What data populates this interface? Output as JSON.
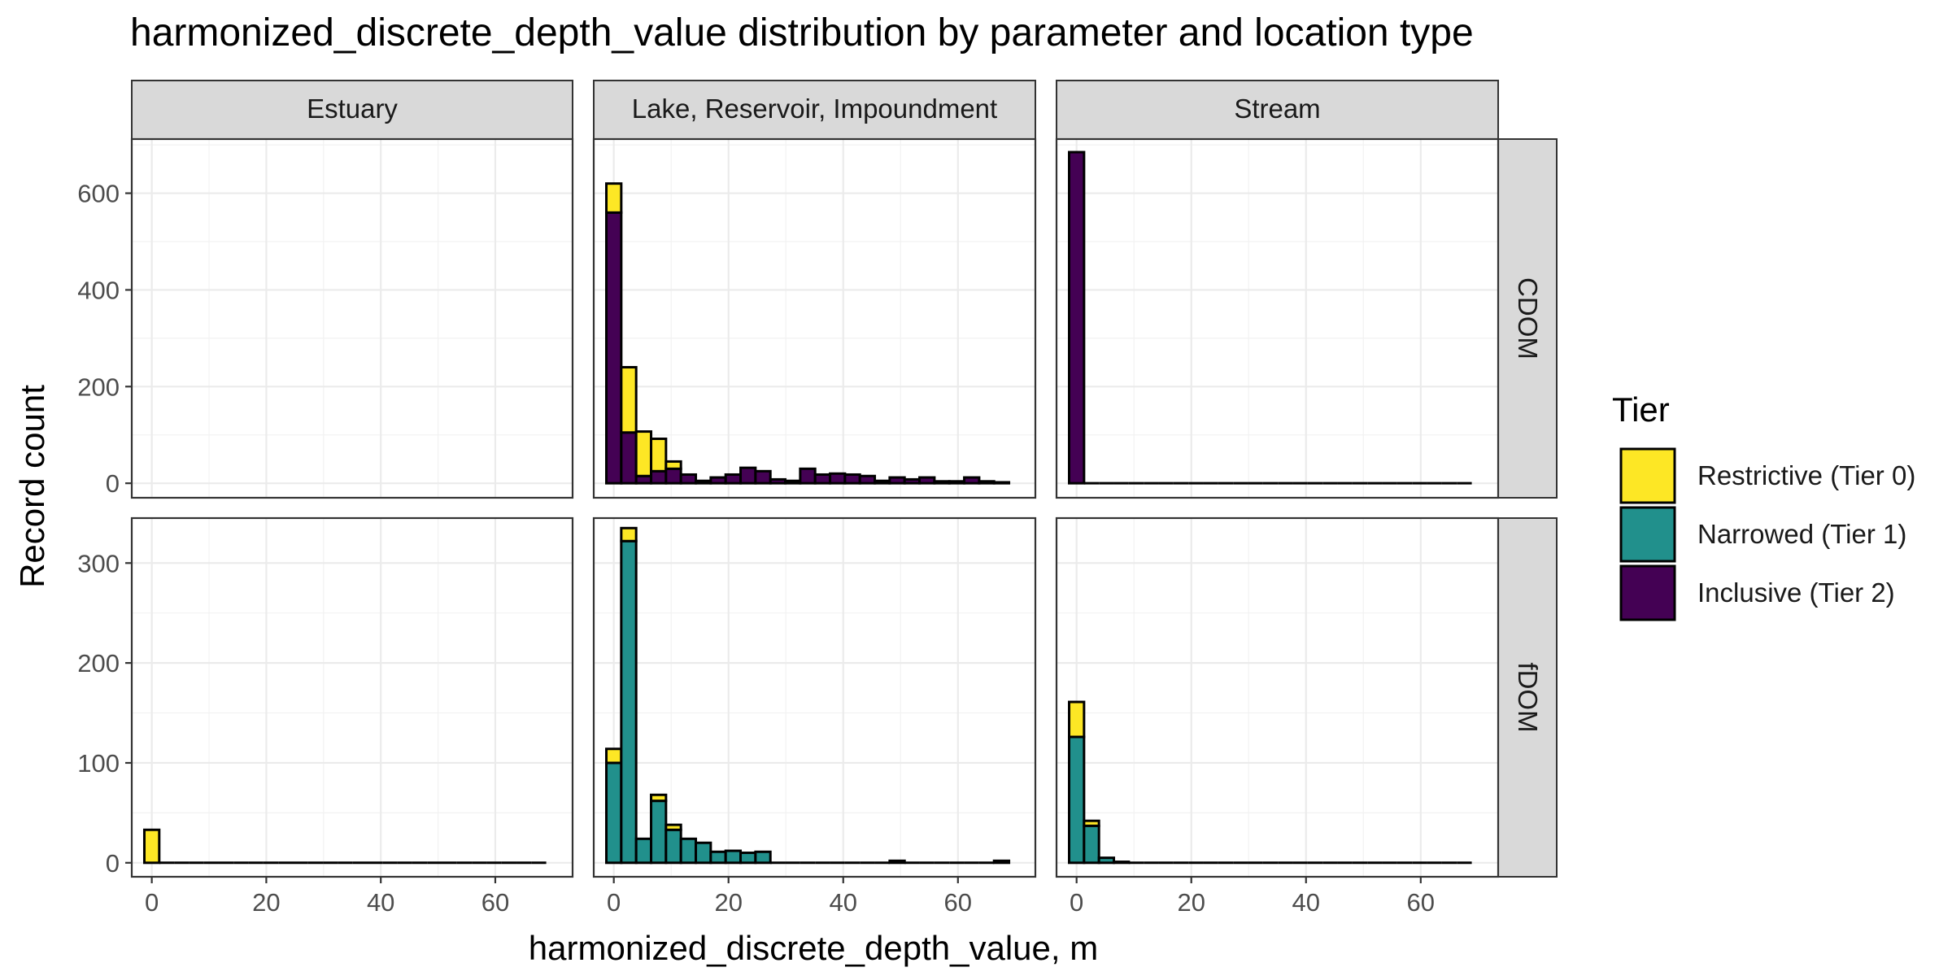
{
  "chart_data": {
    "type": "bar",
    "subtype": "faceted stacked histogram",
    "title": "harmonized_discrete_depth_value distribution by parameter and location type",
    "xlabel": "harmonized_discrete_depth_value, m",
    "ylabel": "Record count",
    "xlim": [
      -3.5,
      73.5
    ],
    "x_ticks": [
      0,
      20,
      40,
      60
    ],
    "bin_width": 2.6,
    "grid": true,
    "legend_placement": "right",
    "legend": {
      "title": "Tier",
      "items": [
        {
          "key": "tier0",
          "label": "Restrictive (Tier 0)",
          "color": "#FDE725"
        },
        {
          "key": "tier1",
          "label": "Narrowed (Tier 1)",
          "color": "#21908C"
        },
        {
          "key": "tier2",
          "label": "Inclusive (Tier 2)",
          "color": "#440154"
        }
      ]
    },
    "columns": [
      "Estuary",
      "Lake, Reservoir, Impoundment",
      "Stream"
    ],
    "rows": [
      {
        "label": "CDOM",
        "ylim": [
          -30,
          712
        ],
        "y_ticks": [
          0,
          200,
          400,
          600
        ]
      },
      {
        "label": "fDOM",
        "ylim": [
          -14,
          345
        ],
        "y_ticks": [
          0,
          100,
          200,
          300
        ]
      }
    ],
    "panels": [
      {
        "row": "CDOM",
        "column": "Estuary",
        "bins": []
      },
      {
        "row": "CDOM",
        "column": "Lake, Reservoir, Impoundment",
        "bins": [
          {
            "x": 0,
            "tier2": 560,
            "tier0": 60
          },
          {
            "x": 2.6,
            "tier2": 105,
            "tier0": 135
          },
          {
            "x": 5.2,
            "tier2": 15,
            "tier0": 92
          },
          {
            "x": 7.8,
            "tier2": 25,
            "tier0": 67
          },
          {
            "x": 10.4,
            "tier2": 30,
            "tier0": 15
          },
          {
            "x": 13,
            "tier2": 18
          },
          {
            "x": 15.6,
            "tier2": 5
          },
          {
            "x": 18.2,
            "tier2": 12
          },
          {
            "x": 20.8,
            "tier2": 18
          },
          {
            "x": 23.4,
            "tier2": 32
          },
          {
            "x": 26,
            "tier2": 25
          },
          {
            "x": 28.6,
            "tier2": 8
          },
          {
            "x": 31.2,
            "tier2": 5
          },
          {
            "x": 33.8,
            "tier2": 30
          },
          {
            "x": 36.4,
            "tier2": 18
          },
          {
            "x": 39,
            "tier2": 20
          },
          {
            "x": 41.6,
            "tier2": 18
          },
          {
            "x": 44.2,
            "tier2": 15
          },
          {
            "x": 46.8,
            "tier2": 5
          },
          {
            "x": 49.4,
            "tier2": 12
          },
          {
            "x": 52,
            "tier2": 8
          },
          {
            "x": 54.6,
            "tier2": 12
          },
          {
            "x": 57.2,
            "tier2": 4
          },
          {
            "x": 59.8,
            "tier2": 4
          },
          {
            "x": 62.4,
            "tier2": 12
          },
          {
            "x": 65,
            "tier2": 4
          },
          {
            "x": 67.6,
            "tier2": 2
          }
        ]
      },
      {
        "row": "CDOM",
        "column": "Stream",
        "bins": [
          {
            "x": 0,
            "tier2": 685
          },
          {
            "x": 2.6
          },
          {
            "x": 5.2
          },
          {
            "x": 7.8
          },
          {
            "x": 10.4
          },
          {
            "x": 13
          },
          {
            "x": 15.6
          },
          {
            "x": 18.2
          },
          {
            "x": 20.8
          },
          {
            "x": 23.4
          },
          {
            "x": 26
          },
          {
            "x": 28.6
          },
          {
            "x": 31.2
          },
          {
            "x": 33.8
          },
          {
            "x": 36.4
          },
          {
            "x": 39
          },
          {
            "x": 41.6
          },
          {
            "x": 44.2
          },
          {
            "x": 46.8
          },
          {
            "x": 49.4
          },
          {
            "x": 52
          },
          {
            "x": 54.6
          },
          {
            "x": 57.2
          },
          {
            "x": 59.8
          },
          {
            "x": 62.4
          },
          {
            "x": 65
          },
          {
            "x": 67.6
          }
        ]
      },
      {
        "row": "fDOM",
        "column": "Estuary",
        "bins": [
          {
            "x": 0,
            "tier0": 33
          },
          {
            "x": 2.6
          },
          {
            "x": 5.2
          },
          {
            "x": 7.8
          },
          {
            "x": 10.4
          },
          {
            "x": 13
          },
          {
            "x": 15.6
          },
          {
            "x": 18.2
          },
          {
            "x": 20.8
          },
          {
            "x": 23.4
          },
          {
            "x": 26
          },
          {
            "x": 28.6
          },
          {
            "x": 31.2
          },
          {
            "x": 33.8
          },
          {
            "x": 36.4
          },
          {
            "x": 39
          },
          {
            "x": 41.6
          },
          {
            "x": 44.2
          },
          {
            "x": 46.8
          },
          {
            "x": 49.4
          },
          {
            "x": 52
          },
          {
            "x": 54.6
          },
          {
            "x": 57.2
          },
          {
            "x": 59.8
          },
          {
            "x": 62.4
          },
          {
            "x": 65
          },
          {
            "x": 67.6
          }
        ]
      },
      {
        "row": "fDOM",
        "column": "Lake, Reservoir, Impoundment",
        "bins": [
          {
            "x": 0,
            "tier1": 100,
            "tier0": 14
          },
          {
            "x": 2.6,
            "tier1": 322,
            "tier0": 13
          },
          {
            "x": 5.2,
            "tier1": 24
          },
          {
            "x": 7.8,
            "tier1": 62,
            "tier0": 6
          },
          {
            "x": 10.4,
            "tier1": 33,
            "tier0": 5
          },
          {
            "x": 13,
            "tier1": 24
          },
          {
            "x": 15.6,
            "tier1": 20
          },
          {
            "x": 18.2,
            "tier1": 11
          },
          {
            "x": 20.8,
            "tier1": 12
          },
          {
            "x": 23.4,
            "tier1": 10
          },
          {
            "x": 26,
            "tier1": 11
          },
          {
            "x": 28.6
          },
          {
            "x": 31.2
          },
          {
            "x": 33.8
          },
          {
            "x": 36.4
          },
          {
            "x": 39
          },
          {
            "x": 41.6
          },
          {
            "x": 44.2
          },
          {
            "x": 46.8
          },
          {
            "x": 49.4,
            "tier1": 2
          },
          {
            "x": 52
          },
          {
            "x": 54.6
          },
          {
            "x": 57.2
          },
          {
            "x": 59.8
          },
          {
            "x": 62.4
          },
          {
            "x": 65
          },
          {
            "x": 67.6,
            "tier1": 2
          }
        ]
      },
      {
        "row": "fDOM",
        "column": "Stream",
        "bins": [
          {
            "x": 0,
            "tier1": 126,
            "tier0": 35
          },
          {
            "x": 2.6,
            "tier1": 37,
            "tier0": 5
          },
          {
            "x": 5.2,
            "tier1": 5
          },
          {
            "x": 7.8,
            "tier1": 1
          },
          {
            "x": 10.4
          },
          {
            "x": 13
          },
          {
            "x": 15.6
          },
          {
            "x": 18.2
          },
          {
            "x": 20.8
          },
          {
            "x": 23.4
          },
          {
            "x": 26
          },
          {
            "x": 28.6
          },
          {
            "x": 31.2
          },
          {
            "x": 33.8
          },
          {
            "x": 36.4
          },
          {
            "x": 39
          },
          {
            "x": 41.6
          },
          {
            "x": 44.2
          },
          {
            "x": 46.8
          },
          {
            "x": 49.4
          },
          {
            "x": 52
          },
          {
            "x": 54.6
          },
          {
            "x": 57.2
          },
          {
            "x": 59.8
          },
          {
            "x": 62.4
          },
          {
            "x": 65
          },
          {
            "x": 67.6
          }
        ]
      }
    ]
  }
}
